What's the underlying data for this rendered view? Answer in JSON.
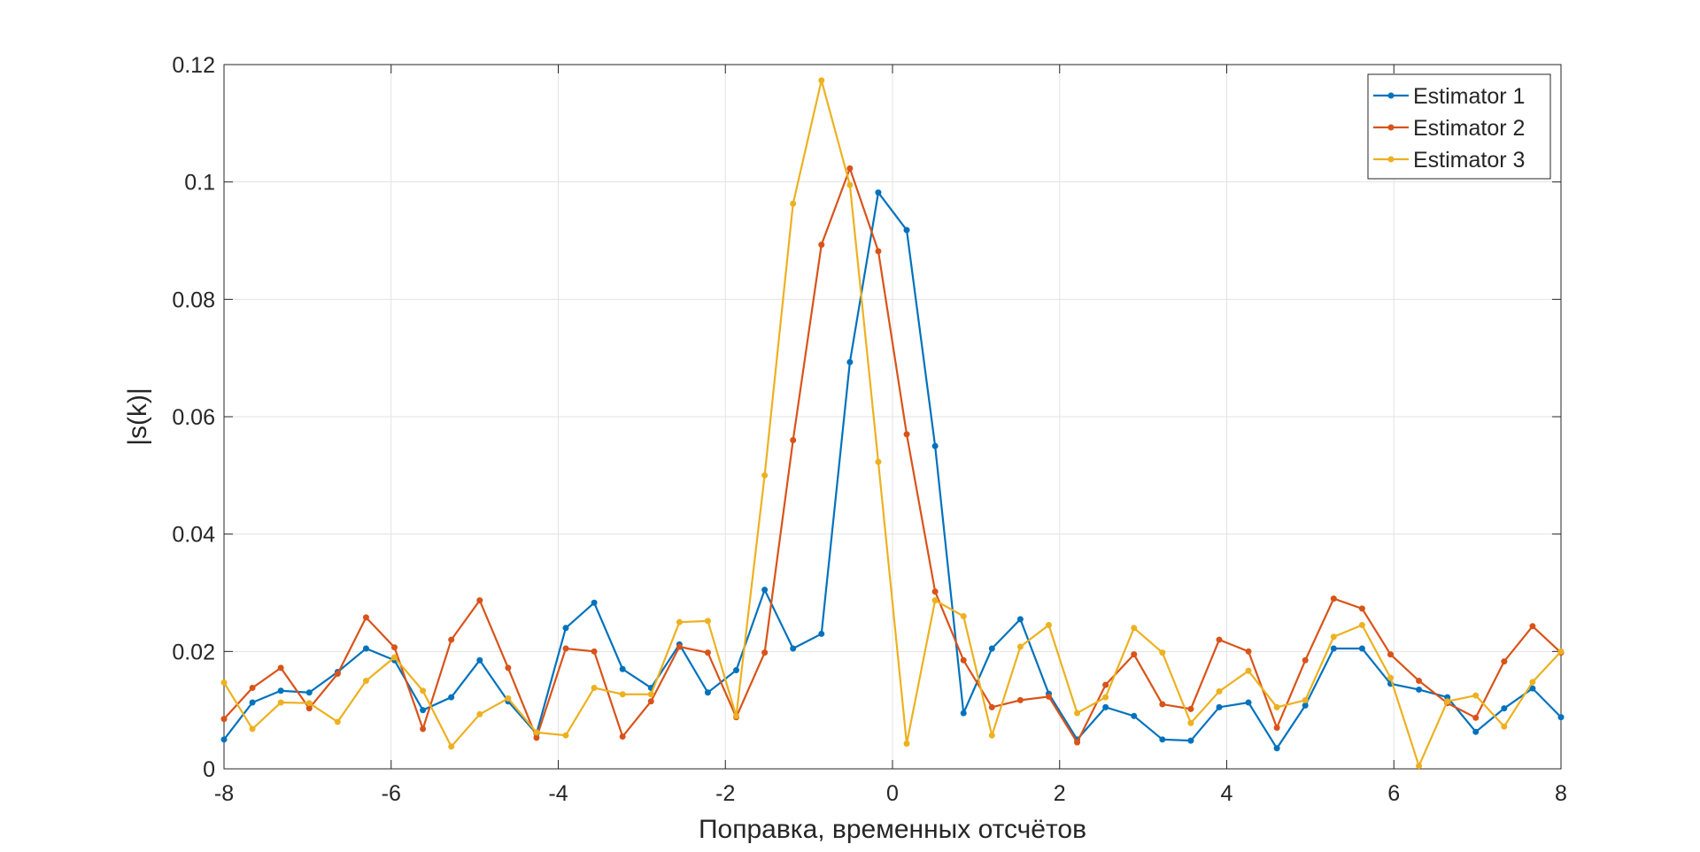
{
  "chart_data": {
    "type": "line",
    "xlabel": "Поправка, временных отсчётов",
    "ylabel": "|s(k)|",
    "x": [
      -8,
      -7.66,
      -7.32,
      -6.98,
      -6.64,
      -6.3,
      -5.96,
      -5.62,
      -5.28,
      -4.94,
      -4.6,
      -4.26,
      -3.91,
      -3.57,
      -3.23,
      -2.89,
      -2.55,
      -2.21,
      -1.87,
      -1.53,
      -1.19,
      -0.85,
      -0.51,
      -0.17,
      0.17,
      0.51,
      0.85,
      1.19,
      1.53,
      1.87,
      2.21,
      2.55,
      2.89,
      3.23,
      3.57,
      3.91,
      4.26,
      4.6,
      4.94,
      5.28,
      5.62,
      5.96,
      6.3,
      6.64,
      6.98,
      7.32,
      7.66,
      8
    ],
    "series": [
      {
        "name": "Estimator 1",
        "color": "#0072bd",
        "values": [
          0.005,
          0.0113,
          0.0133,
          0.013,
          0.0165,
          0.0205,
          0.0185,
          0.01,
          0.0122,
          0.0185,
          0.0115,
          0.006,
          0.024,
          0.0283,
          0.017,
          0.0138,
          0.0212,
          0.013,
          0.0168,
          0.0305,
          0.0205,
          0.023,
          0.0693,
          0.0982,
          0.0918,
          0.055,
          0.0095,
          0.0205,
          0.0255,
          0.0128,
          0.005,
          0.0105,
          0.009,
          0.005,
          0.0048,
          0.0105,
          0.0113,
          0.0035,
          0.0108,
          0.0205,
          0.0205,
          0.0145,
          0.0135,
          0.0122,
          0.0063,
          0.0103,
          0.0137,
          0.0088
        ]
      },
      {
        "name": "Estimator 2",
        "color": "#d95319",
        "values": [
          0.0085,
          0.0138,
          0.0172,
          0.0103,
          0.0162,
          0.0258,
          0.0207,
          0.0068,
          0.022,
          0.0287,
          0.0172,
          0.0053,
          0.0205,
          0.02,
          0.0055,
          0.0115,
          0.0208,
          0.0198,
          0.0088,
          0.0198,
          0.056,
          0.0893,
          0.1023,
          0.0882,
          0.057,
          0.0302,
          0.0185,
          0.0105,
          0.0117,
          0.0123,
          0.0045,
          0.0143,
          0.0195,
          0.011,
          0.0102,
          0.022,
          0.02,
          0.007,
          0.0185,
          0.029,
          0.0273,
          0.0195,
          0.015,
          0.0112,
          0.0087,
          0.0183,
          0.0243,
          0.0198
        ]
      },
      {
        "name": "Estimator 3",
        "color": "#edb120",
        "values": [
          0.0147,
          0.0068,
          0.0113,
          0.0112,
          0.008,
          0.015,
          0.019,
          0.0133,
          0.0038,
          0.0093,
          0.012,
          0.0062,
          0.0057,
          0.0138,
          0.0127,
          0.0127,
          0.025,
          0.0252,
          0.009,
          0.05,
          0.0963,
          0.1173,
          0.0995,
          0.0523,
          0.0043,
          0.0287,
          0.026,
          0.0057,
          0.0208,
          0.0245,
          0.0095,
          0.0122,
          0.024,
          0.0198,
          0.0078,
          0.0132,
          0.0167,
          0.0105,
          0.0117,
          0.0225,
          0.0245,
          0.0155,
          0.0005,
          0.0115,
          0.0125,
          0.0072,
          0.0148,
          0.02
        ]
      }
    ],
    "xlim": [
      -8,
      8
    ],
    "xticks": [
      -8,
      -6,
      -4,
      -2,
      0,
      2,
      4,
      6,
      8
    ],
    "ylim": [
      0,
      0.12
    ],
    "yticks": [
      0,
      0.02,
      0.04,
      0.06,
      0.08,
      0.1,
      0.12
    ],
    "grid": true,
    "legend": "northeast"
  }
}
